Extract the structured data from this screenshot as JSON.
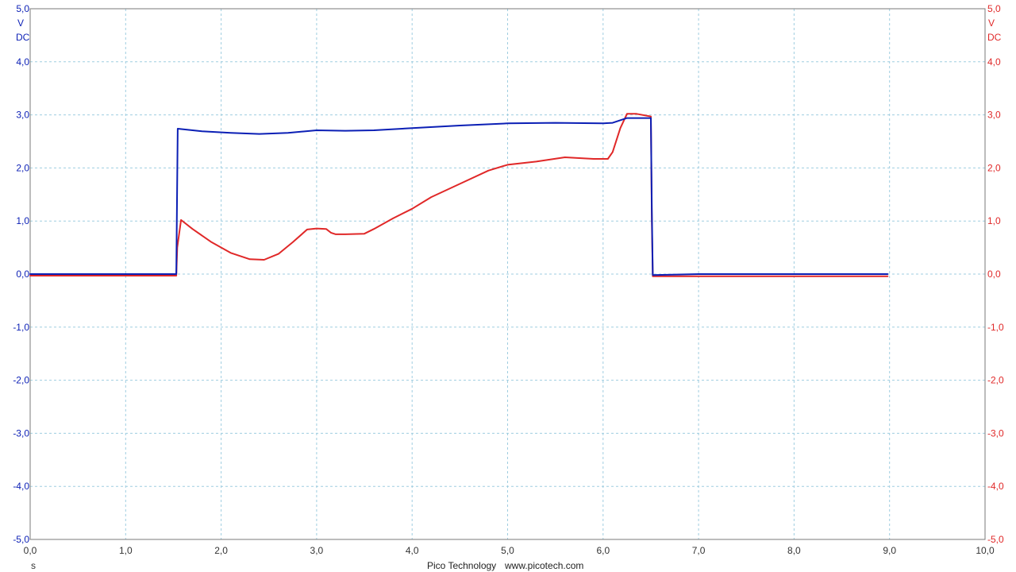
{
  "colors": {
    "channel_a": "#0b1fb5",
    "channel_b": "#e02828",
    "grid": "#9fcde0",
    "axis_text": "#333333"
  },
  "footer": {
    "brand": "Pico Technology",
    "url": "www.picotech.com"
  },
  "chart_data": {
    "type": "line",
    "grid": true,
    "x_axis": {
      "unit_label": "s",
      "range": [
        0,
        10
      ],
      "ticks": [
        0,
        1,
        2,
        3,
        4,
        5,
        6,
        7,
        8,
        9,
        10
      ],
      "tick_labels": [
        "0,0",
        "1,0",
        "2,0",
        "3,0",
        "4,0",
        "5,0",
        "6,0",
        "7,0",
        "8,0",
        "9,0",
        "10,0"
      ]
    },
    "y_axis_left": {
      "unit_label": "V",
      "coupling_label": "DC",
      "range": [
        -5,
        5
      ],
      "ticks": [
        5,
        4,
        3,
        2,
        1,
        0,
        -1,
        -2,
        -3,
        -4,
        -5
      ],
      "tick_labels": [
        "5,0",
        "4,0",
        "3,0",
        "2,0",
        "1,0",
        "0,0",
        "-1,0",
        "-2,0",
        "-3,0",
        "-4,0",
        "-5,0"
      ]
    },
    "y_axis_right": {
      "unit_label": "V",
      "coupling_label": "DC",
      "range": [
        -5,
        5
      ],
      "ticks": [
        5,
        4,
        3,
        2,
        1,
        0,
        -1,
        -2,
        -3,
        -4,
        -5
      ],
      "tick_labels": [
        "5,0",
        "4,0",
        "3,0",
        "2,0",
        "1,0",
        "0,0",
        "-1,0",
        "-2,0",
        "-3,0",
        "-4,0",
        "-5,0"
      ]
    },
    "series": [
      {
        "color": "#0b1fb5",
        "x": [
          0.0,
          1.53,
          1.545,
          1.8,
          2.1,
          2.4,
          2.7,
          3.0,
          3.3,
          3.6,
          4.0,
          4.5,
          5.0,
          5.5,
          6.0,
          6.1,
          6.25,
          6.4,
          6.5,
          6.51,
          6.52,
          7.0,
          8.0,
          8.98
        ],
        "values": [
          0.0,
          0.0,
          2.74,
          2.69,
          2.66,
          2.64,
          2.66,
          2.71,
          2.7,
          2.71,
          2.75,
          2.8,
          2.84,
          2.85,
          2.84,
          2.85,
          2.94,
          2.94,
          2.94,
          1.2,
          -0.02,
          0.0,
          0.0,
          0.0
        ]
      },
      {
        "color": "#e02828",
        "x": [
          0.0,
          1.53,
          1.54,
          1.58,
          1.7,
          1.9,
          2.1,
          2.3,
          2.45,
          2.6,
          2.75,
          2.9,
          3.0,
          3.1,
          3.15,
          3.2,
          3.3,
          3.5,
          3.6,
          3.8,
          4.0,
          4.2,
          4.5,
          4.8,
          5.0,
          5.3,
          5.6,
          5.9,
          6.05,
          6.1,
          6.18,
          6.25,
          6.35,
          6.5,
          6.51,
          6.52,
          7.0,
          8.0,
          8.98
        ],
        "values": [
          -0.03,
          -0.03,
          0.5,
          1.02,
          0.85,
          0.6,
          0.4,
          0.28,
          0.27,
          0.38,
          0.6,
          0.84,
          0.86,
          0.85,
          0.78,
          0.75,
          0.75,
          0.76,
          0.85,
          1.05,
          1.23,
          1.45,
          1.7,
          1.95,
          2.06,
          2.12,
          2.2,
          2.17,
          2.17,
          2.3,
          2.75,
          3.02,
          3.02,
          2.97,
          1.0,
          -0.04,
          -0.04,
          -0.04,
          -0.04
        ]
      }
    ]
  }
}
